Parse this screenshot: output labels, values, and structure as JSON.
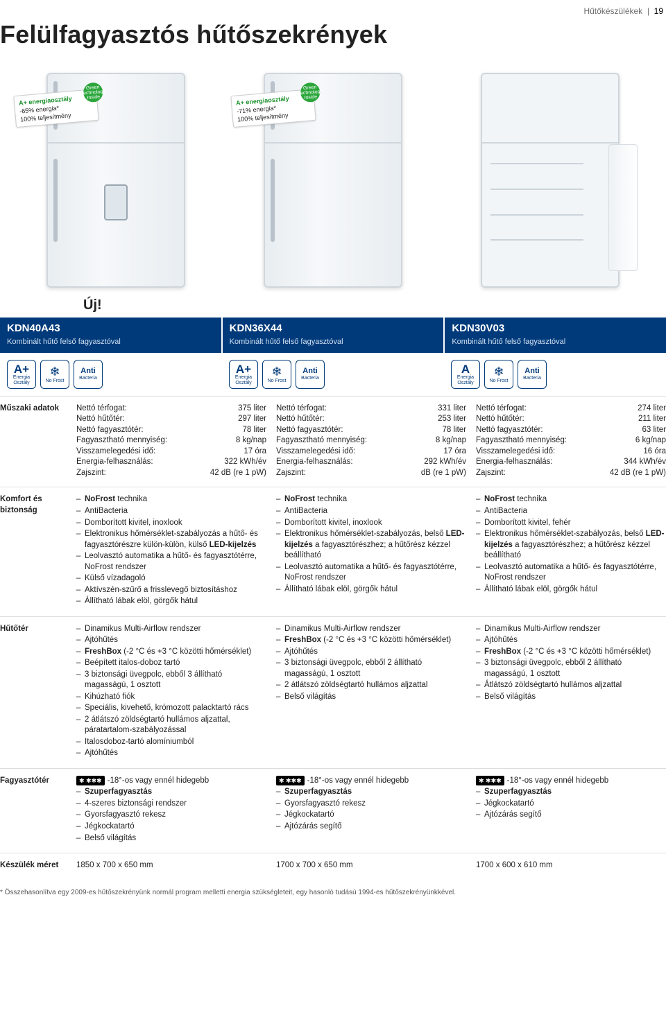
{
  "header": {
    "category": "Hűtőkészülékek",
    "page_number": "19"
  },
  "title": "Felülfagyasztós hűtőszekrények",
  "new_label": "Új!",
  "eco_tags": [
    {
      "line1": "A+ energiaosztály",
      "line2": "-65% energia*",
      "line3": "100% teljesítmény",
      "badge": "Green Technology Inside"
    },
    {
      "line1": "A+ energiaosztály",
      "line2": "-71% energia*",
      "line3": "100% teljesítmény",
      "badge": "Green Technology Inside"
    }
  ],
  "models": [
    {
      "code": "KDN40A43",
      "subtitle": "Kombinált hűtő felső fagyasztóval",
      "icons": [
        {
          "type": "energy",
          "big": "A+",
          "sub": "Energia Osztály"
        },
        {
          "type": "snow",
          "sub": "No Frost"
        },
        {
          "type": "anti",
          "big": "Anti",
          "sub": "Bacteria"
        }
      ]
    },
    {
      "code": "KDN36X44",
      "subtitle": "Kombinált hűtő felső fagyasztóval",
      "icons": [
        {
          "type": "energy",
          "big": "A+",
          "sub": "Energia Osztály"
        },
        {
          "type": "snow",
          "sub": "No Frost"
        },
        {
          "type": "anti",
          "big": "Anti",
          "sub": "Bacteria"
        }
      ]
    },
    {
      "code": "KDN30V03",
      "subtitle": "Kombinált hűtő felső fagyasztóval",
      "icons": [
        {
          "type": "energy",
          "big": "A",
          "sub": "Energia Osztály"
        },
        {
          "type": "snow",
          "sub": "No Frost"
        },
        {
          "type": "anti",
          "big": "Anti",
          "sub": "Bacteria"
        }
      ]
    }
  ],
  "section_labels": {
    "specs": "Műszaki adatok",
    "comfort": "Komfort és biztonság",
    "fridge": "Hűtőtér",
    "freezer": "Fagyasztótér",
    "size": "Készülék méret"
  },
  "specs": [
    [
      {
        "k": "Nettó térfogat:",
        "v": "375 liter"
      },
      {
        "k": "Nettó hűtőtér:",
        "v": "297 liter"
      },
      {
        "k": "Nettó fagyasztótér:",
        "v": "78 liter"
      },
      {
        "k": "Fagyasztható mennyiség:",
        "v": "8 kg/nap"
      },
      {
        "k": "Visszamelegedési idő:",
        "v": "17 óra"
      },
      {
        "k": "Energia-felhasználás:",
        "v": "322 kWh/év"
      },
      {
        "k": "Zajszint:",
        "v": "42 dB (re 1 pW)"
      }
    ],
    [
      {
        "k": "Nettó térfogat:",
        "v": "331 liter"
      },
      {
        "k": "Nettó hűtőtér:",
        "v": "253 liter"
      },
      {
        "k": "Nettó fagyasztótér:",
        "v": "78 liter"
      },
      {
        "k": "Fagyasztható mennyiség:",
        "v": "8 kg/nap"
      },
      {
        "k": "Visszamelegedési idő:",
        "v": "17 óra"
      },
      {
        "k": "Energia-felhasználás:",
        "v": "292 kWh/év"
      },
      {
        "k": "Zajszint:",
        "v": "dB (re 1 pW)"
      }
    ],
    [
      {
        "k": "Nettó térfogat:",
        "v": "274 liter"
      },
      {
        "k": "Nettó hűtőtér:",
        "v": "211 liter"
      },
      {
        "k": "Nettó fagyasztótér:",
        "v": "63 liter"
      },
      {
        "k": "Fagyasztható mennyiség:",
        "v": "6 kg/nap"
      },
      {
        "k": "Visszamelegedési idő:",
        "v": "16 óra"
      },
      {
        "k": "Energia-felhasználás:",
        "v": "344 kWh/év"
      },
      {
        "k": "Zajszint:",
        "v": "42 dB (re 1 pW)"
      }
    ]
  ],
  "comfort": [
    [
      "<b>NoFrost</b> technika",
      "AntiBacteria",
      "Domborított kivitel, inoxlook",
      "Elektronikus hőmérséklet-szabályozás a hűtő- és fagyasztórészre külön-külön, külső <b>LED-kijelzés</b>",
      "Leolvasztó automatika a hűtő- és fagyasztótérre, NoFrost rendszer",
      "Külső vízadagoló",
      "Aktívszén-szűrő a frisslevegő biztosításhoz",
      "Állítható lábak elöl, görgők hátul"
    ],
    [
      "<b>NoFrost</b> technika",
      "AntiBacteria",
      "Domborított kivitel, inoxlook",
      "Elektronikus hőmérséklet-szabályozás, belső <b>LED-kijelzés</b> a fagyasztórészhez; a hűtőrész kézzel beállítható",
      "Leolvasztó automatika a hűtő- és fagyasztótérre, NoFrost rendszer",
      "Állítható lábak elöl, görgők hátul"
    ],
    [
      "<b>NoFrost</b> technika",
      "AntiBacteria",
      "Domborított kivitel, fehér",
      "Elektronikus hőmérséklet-szabályozás, belső <b>LED-kijelzés</b> a fagyasztórészhez; a hűtőrész kézzel beállítható",
      "Leolvasztó automatika a hűtő- és fagyasztótérre, NoFrost rendszer",
      "Állítható lábak elöl, görgők hátul"
    ]
  ],
  "fridge": [
    [
      "Dinamikus Multi-Airflow rendszer",
      "Ajtóhűtés",
      "<b>FreshBox</b> (-2 °C és +3 °C közötti hőmérséklet)",
      "Beépített italos-doboz tartó",
      "3 biztonsági üvegpolc, ebből 3 állítható magasságú, 1 osztott",
      "Kihúzható fiók",
      "Speciális, kivehető, krómozott palacktartó rács",
      "2 átlátszó zöldségtartó hullámos aljzattal, páratartalom-szabályozással",
      "Italosdoboz-tartó alomíniumból",
      "Ajtóhűtés"
    ],
    [
      "Dinamikus Multi-Airflow rendszer",
      "<b>FreshBox</b> (-2 °C és +3 °C közötti hőmérséklet)",
      "Ajtóhűtés",
      "3 biztonsági üvegpolc, ebből 2 állítható magasságú, 1 osztott",
      "2 átlátszó zöldségtartó hullámos aljzattal",
      "Belső világítás"
    ],
    [
      "Dinamikus Multi-Airflow rendszer",
      "Ajtóhűtés",
      "<b>FreshBox</b> (-2 °C és +3 °C közötti hőmérséklet)",
      "3 biztonsági üvegpolc, ebből 2 állítható magasságú, 1 osztott",
      "Átlátszó zöldségtartó hullámos aljzattal",
      "Belső világítás"
    ]
  ],
  "freezer_badge": "✱ ✱✱✱",
  "freezer": [
    [
      "-18°-os vagy ennél hidegebb",
      "<b>Szuperfagyasztás</b>",
      "4-szeres biztonsági rendszer",
      "Gyorsfagyasztó rekesz",
      "Jégkockatartó",
      "Belső világítás"
    ],
    [
      "-18°-os vagy ennél hidegebb",
      "<b>Szuperfagyasztás</b>",
      "Gyorsfagyasztó rekesz",
      "Jégkockatartó",
      "Ajtózárás segítő"
    ],
    [
      "-18°-os vagy ennél hidegebb",
      "<b>Szuperfagyasztás</b>",
      "Jégkockatartó",
      "Ajtózárás segítő"
    ]
  ],
  "sizes": [
    "1850 x 700 x 650 mm",
    "1700 x 700 x 650 mm",
    "1700 x 600 x 610 mm"
  ],
  "footnote": "* Összehasonlítva egy 2009-es hűtőszekrényünk normál program melletti energia szükségleteit, egy hasonló tudású 1994-es hűtőszekrényünkkével.",
  "colors": {
    "brand_blue": "#003a7a",
    "green": "#2aa63a",
    "text": "#222222",
    "rule": "#dddddd"
  }
}
